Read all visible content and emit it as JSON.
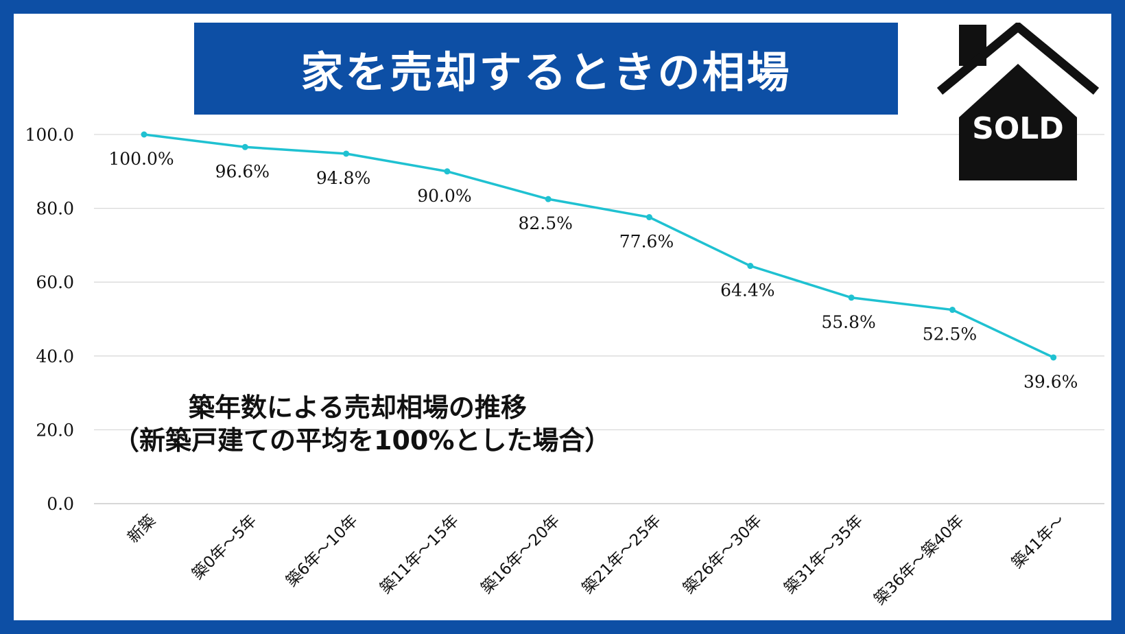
{
  "title": "家を売却するときの相場",
  "subtitle_line1": "築年数による売却相場の推移",
  "subtitle_line2": "（新築戸建ての平均を100%とした場合）",
  "badge": {
    "text": "SOLD",
    "icon": "house-icon"
  },
  "colors": {
    "frame": "#0d4fa5",
    "line": "#1fc1d1",
    "grid": "#d9d9d9"
  },
  "chart_data": {
    "type": "line",
    "categories": [
      "新築",
      "築0年～5年",
      "築6年～10年",
      "築11年～15年",
      "築16年～20年",
      "築21年～25年",
      "築26年～30年",
      "築31年～35年",
      "築36年～築40年",
      "築41年～"
    ],
    "series": [
      {
        "values": [
          100.0,
          96.6,
          94.8,
          90.0,
          82.5,
          77.6,
          64.4,
          55.8,
          52.5,
          39.6
        ]
      }
    ],
    "data_labels": [
      "100.0%",
      "96.6%",
      "94.8%",
      "90.0%",
      "82.5%",
      "77.6%",
      "64.4%",
      "55.8%",
      "52.5%",
      "39.6%"
    ],
    "ylim": [
      0,
      100
    ],
    "yticks": [
      "0.0",
      "20.0",
      "40.0",
      "60.0",
      "80.0",
      "100.0"
    ],
    "grid": true
  }
}
